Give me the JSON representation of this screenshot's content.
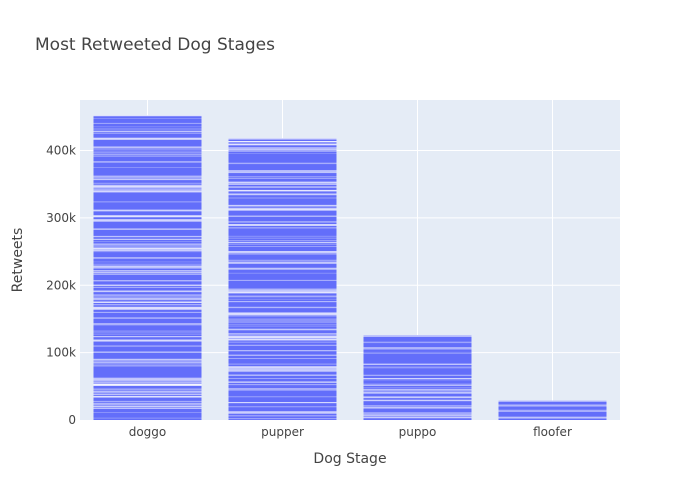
{
  "chart_data": {
    "type": "bar",
    "title": "Most Retweeted Dog Stages",
    "xlabel": "Dog Stage",
    "ylabel": "Retweets",
    "categories": [
      "doggo",
      "pupper",
      "puppo",
      "floofer"
    ],
    "values": [
      452000,
      418000,
      126000,
      29000
    ],
    "ylim": [
      0,
      475000
    ],
    "yticks": [
      0,
      100000,
      200000,
      300000,
      400000
    ],
    "ytick_labels": [
      "0",
      "100k",
      "200k",
      "300k",
      "400k"
    ],
    "grid": true,
    "colors": {
      "bar": "#636efa",
      "plot_bg": "#e5ecf6",
      "grid": "#ffffff",
      "text": "#444444"
    }
  }
}
